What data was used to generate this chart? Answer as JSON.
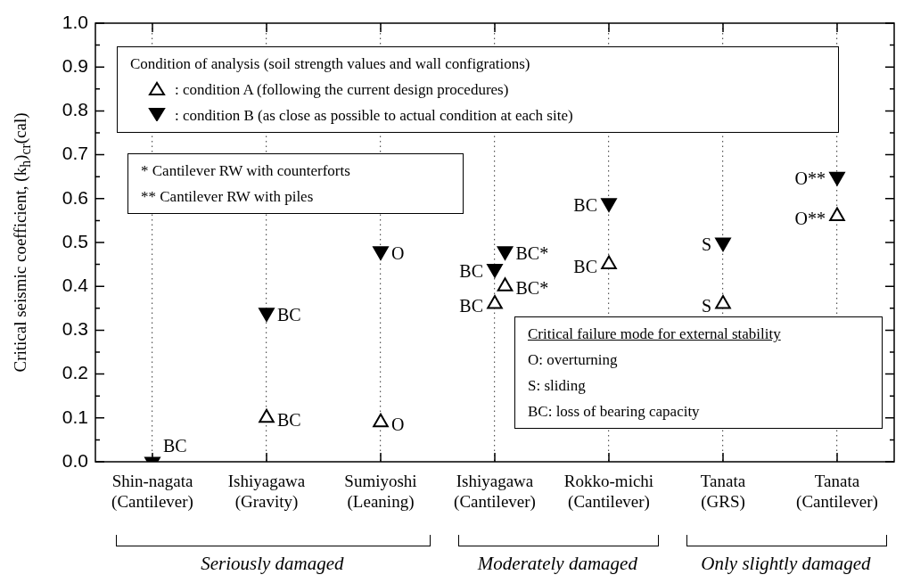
{
  "chart_data": {
    "type": "scatter",
    "ylabel": "Critical seismic coefficient, (k$_{h}$)$_{cr}$(cal)",
    "legend_title": "Condition of analysis (soil strength values and wall configrations)",
    "categories": [
      "Shin-nagata\n(Cantilever)",
      "Ishiyagawa\n(Gravity)",
      "Sumiyoshi\n(Leaning)",
      "Ishiyagawa\n(Cantilever)",
      "Rokko-michi\n(Cantilever)",
      "Tanata\n(GRS)",
      "Tanata\n(Cantilever)"
    ],
    "ylim": [
      0,
      1
    ],
    "yticks": [
      {
        "value": 0,
        "label": "0.0"
      },
      {
        "value": 0.05,
        "label": null
      },
      0.1,
      {
        "value": 0.15,
        "label": null
      },
      0.2,
      {
        "value": 0.25,
        "label": null
      },
      0.3,
      {
        "value": 0.35,
        "label": null
      },
      0.4,
      {
        "value": 0.45,
        "label": null
      },
      0.5,
      {
        "value": 0.55,
        "label": null
      },
      0.6,
      {
        "value": 0.65,
        "label": null
      },
      0.7,
      {
        "value": 0.75,
        "label": null
      },
      0.8,
      {
        "value": 0.85,
        "label": null
      },
      0.9,
      {
        "value": 0.95,
        "label": null
      },
      {
        "value": 1,
        "label": "1.0"
      }
    ],
    "grid": "x",
    "legend": "top",
    "series": [
      {
        "name": ": condition A (following the current design procedures)",
        "color": "#000000",
        "marker": "triangle",
        "values": [
          null,
          0.1,
          0.09,
          0.36,
          0.45,
          0.36,
          0.56
        ],
        "value_labels": [
          null,
          "BC",
          "O",
          "BC",
          "BC",
          "S",
          "O**"
        ]
      },
      {
        "name": ": condition B (as close as possible to actual condition at each site)",
        "color": "#000000",
        "marker": "triangle-down",
        "values": [
          0.0,
          0.34,
          0.48,
          0.44,
          0.59,
          0.5,
          0.65
        ],
        "value_labels": [
          "BC",
          "BC",
          "O",
          "BC",
          "BC",
          "S",
          "O**"
        ]
      },
      {
        "color": "#000000",
        "marker": "triangle",
        "values": [
          null,
          null,
          null,
          0.4,
          null,
          null,
          null
        ],
        "value_labels": [
          null,
          null,
          null,
          "BC*",
          null,
          null,
          null
        ]
      },
      {
        "color": "#000000",
        "marker": "triangle-down",
        "values": [
          null,
          null,
          null,
          0.48,
          null,
          null,
          null
        ],
        "value_labels": [
          null,
          null,
          null,
          "BC*",
          null,
          null,
          null
        ]
      }
    ],
    "annotations": [
      "* Cantilever RW with counterforts",
      "** Cantilever RW with piles",
      "Critical failure mode for external stability",
      "O: overturning",
      "S: sliding",
      "BC: loss of bearing capacity",
      "Seriously damaged",
      "Moderately damaged",
      "Only slightly damaged"
    ]
  }
}
